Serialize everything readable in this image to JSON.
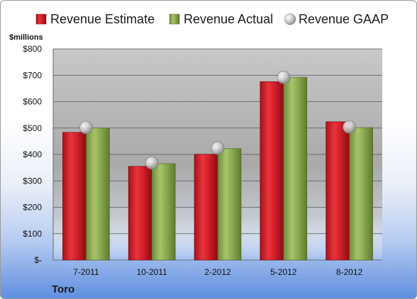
{
  "chart_data": {
    "type": "bar",
    "title": "",
    "company": "Toro",
    "unit_label": "$millions",
    "categories": [
      "7-2011",
      "10-2011",
      "2-2012",
      "5-2012",
      "8-2012"
    ],
    "y_ticks": [
      "$-",
      "$100",
      "$200",
      "$300",
      "$400",
      "$500",
      "$600",
      "$700",
      "$800"
    ],
    "ylim": [
      0,
      800
    ],
    "grid": true,
    "legend_position": "top",
    "series": [
      {
        "name": "Revenue Estimate",
        "kind": "bar",
        "color": "#d9212b",
        "values": [
          484,
          355,
          401,
          676,
          524
        ]
      },
      {
        "name": "Revenue Actual",
        "kind": "bar",
        "color": "#8cac52",
        "values": [
          500,
          365,
          422,
          692,
          502
        ]
      },
      {
        "name": "Revenue GAAP",
        "kind": "marker",
        "color": "#c9c9c9",
        "values": [
          502,
          368,
          424,
          692,
          504
        ]
      }
    ]
  }
}
